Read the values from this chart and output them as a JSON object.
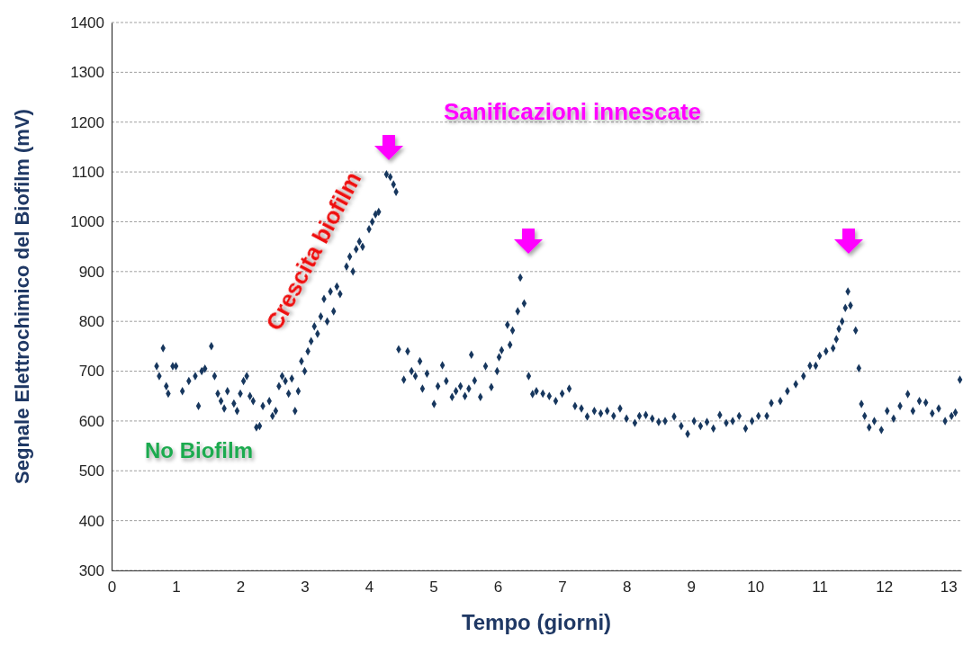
{
  "chart_data": {
    "type": "scatter",
    "xlabel": "Tempo (giorni)",
    "ylabel": "Segnale Elettrochimico del Biofilm (mV)",
    "annotations": [
      "Sanificazioni innescate",
      "Crescita biofilm",
      "No Biofilm"
    ],
    "xlim": [
      0,
      13.2
    ],
    "xticks": [
      0,
      1,
      2,
      3,
      4,
      5,
      6,
      7,
      8,
      9,
      10,
      11,
      12,
      13
    ],
    "ylim": [
      300,
      1400
    ],
    "yticks": [
      300,
      400,
      500,
      600,
      700,
      800,
      900,
      1000,
      1100,
      1200,
      1300,
      1400
    ],
    "grid": "y",
    "marker": "diamond",
    "series": [
      {
        "color": "#17375e",
        "x": [
          0.7,
          0.74,
          0.8,
          0.85,
          0.88,
          0.95,
          1.0,
          1.1,
          1.2,
          1.3,
          1.35,
          1.4,
          1.45,
          1.55,
          1.6,
          1.65,
          1.7,
          1.75,
          1.8,
          1.9,
          1.95,
          2.0,
          2.05,
          2.1,
          2.15,
          2.2,
          2.25,
          2.3,
          2.35,
          2.45,
          2.5,
          2.55,
          2.6,
          2.65,
          2.7,
          2.75,
          2.8,
          2.85,
          2.9,
          2.95,
          3.0,
          3.05,
          3.1,
          3.15,
          3.2,
          3.25,
          3.3,
          3.35,
          3.4,
          3.45,
          3.5,
          3.55,
          3.65,
          3.7,
          3.75,
          3.8,
          3.85,
          3.9,
          4.0,
          4.05,
          4.1,
          4.15,
          4.27,
          4.33,
          4.38,
          4.42,
          4.46,
          4.54,
          4.6,
          4.66,
          4.72,
          4.79,
          4.83,
          4.9,
          5.01,
          5.07,
          5.14,
          5.2,
          5.29,
          5.35,
          5.42,
          5.49,
          5.55,
          5.59,
          5.64,
          5.73,
          5.81,
          5.9,
          5.99,
          6.02,
          6.06,
          6.15,
          6.19,
          6.23,
          6.31,
          6.35,
          6.41,
          6.48,
          6.54,
          6.6,
          6.7,
          6.8,
          6.9,
          7.0,
          7.11,
          7.2,
          7.3,
          7.39,
          7.5,
          7.6,
          7.7,
          7.8,
          7.9,
          8.0,
          8.13,
          8.2,
          8.3,
          8.4,
          8.5,
          8.6,
          8.74,
          8.85,
          8.95,
          9.05,
          9.15,
          9.25,
          9.35,
          9.45,
          9.55,
          9.65,
          9.75,
          9.85,
          9.95,
          10.05,
          10.18,
          10.25,
          10.39,
          10.5,
          10.63,
          10.75,
          10.85,
          10.94,
          11.0,
          11.1,
          11.21,
          11.26,
          11.3,
          11.35,
          11.4,
          11.44,
          11.48,
          11.56,
          11.61,
          11.65,
          11.7,
          11.77,
          11.85,
          11.96,
          12.05,
          12.15,
          12.25,
          12.37,
          12.45,
          12.55,
          12.65,
          12.75,
          12.85,
          12.95,
          13.05,
          13.11,
          13.18
        ],
        "values": [
          710,
          690,
          746,
          670,
          655,
          710,
          710,
          660,
          680,
          690,
          630,
          700,
          705,
          750,
          690,
          655,
          640,
          625,
          660,
          635,
          620,
          655,
          680,
          690,
          650,
          640,
          587,
          590,
          630,
          640,
          610,
          620,
          670,
          690,
          680,
          655,
          685,
          620,
          660,
          720,
          700,
          740,
          760,
          790,
          775,
          810,
          845,
          800,
          860,
          820,
          870,
          855,
          910,
          930,
          900,
          945,
          960,
          950,
          985,
          1000,
          1015,
          1020,
          1095,
          1090,
          1075,
          1060,
          744,
          683,
          740,
          700,
          690,
          720,
          665,
          695,
          634,
          670,
          712,
          680,
          648,
          660,
          670,
          650,
          665,
          733,
          681,
          648,
          710,
          668,
          700,
          728,
          742,
          793,
          753,
          782,
          820,
          888,
          836,
          690,
          654,
          660,
          655,
          650,
          640,
          655,
          665,
          630,
          625,
          609,
          620,
          615,
          620,
          610,
          625,
          605,
          596,
          610,
          612,
          605,
          598,
          600,
          609,
          590,
          574,
          600,
          590,
          598,
          585,
          612,
          596,
          600,
          610,
          585,
          600,
          610,
          610,
          636,
          640,
          660,
          674,
          690,
          711,
          711,
          731,
          740,
          746,
          764,
          785,
          800,
          827,
          860,
          832,
          782,
          706,
          634,
          610,
          587,
          600,
          582,
          620,
          605,
          630,
          654,
          620,
          640,
          637,
          615,
          625,
          600,
          610,
          617,
          683
        ]
      }
    ]
  }
}
